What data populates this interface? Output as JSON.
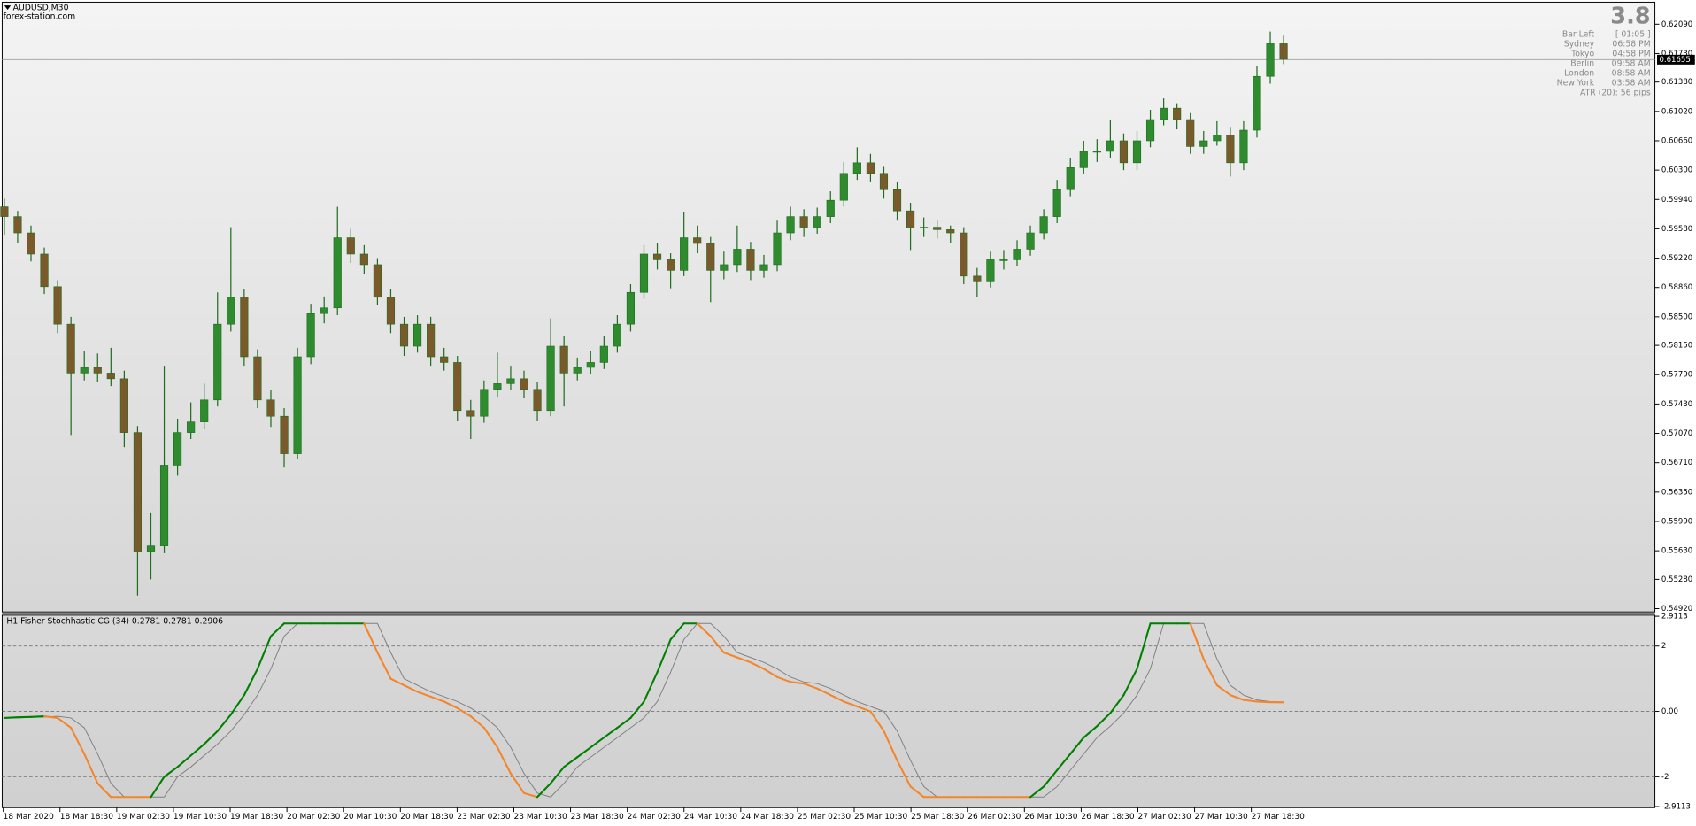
{
  "header": {
    "symbol": "AUDUSD,M30",
    "site": "forex-station.com"
  },
  "info": {
    "value": 3.8,
    "rows": [
      {
        "label": "Bar Left",
        "value": "[ 01:05 ]"
      },
      {
        "label": "Sydney",
        "value": "06:58 PM"
      },
      {
        "label": "Tokyo",
        "value": "04:58 PM"
      },
      {
        "label": "Berlin",
        "value": "09:58 AM"
      },
      {
        "label": "London",
        "value": "08:58 AM"
      },
      {
        "label": "New York",
        "value": "03:58 AM"
      }
    ],
    "atr": "ATR (20): 56 pips"
  },
  "chart_data": [
    {
      "type": "candlestick",
      "up_color": "#2e8b2e",
      "down_color": "#7a5a2a",
      "wick_color": "#1f6e1f",
      "open": [
        0.5985,
        0.5973,
        0.5953,
        0.5927,
        0.5887,
        0.5841,
        0.5781,
        0.5788,
        0.5781,
        0.5774,
        0.5708,
        0.5562,
        0.5569,
        0.5668,
        0.5708,
        0.5721,
        0.5748,
        0.5841,
        0.5874,
        0.5801,
        0.5748,
        0.5728,
        0.5682,
        0.5801,
        0.5854,
        0.5861,
        0.5947,
        0.5927,
        0.5914,
        0.5874,
        0.5841,
        0.5814,
        0.5841,
        0.5801,
        0.5794,
        0.5735,
        0.5728,
        0.5761,
        0.5768,
        0.5774,
        0.5761,
        0.5735,
        0.5814,
        0.5781,
        0.5788,
        0.5794,
        0.5814,
        0.5841,
        0.588,
        0.5927,
        0.592,
        0.5907,
        0.5947,
        0.594,
        0.5907,
        0.5914,
        0.5933,
        0.5907,
        0.5914,
        0.5953,
        0.5973,
        0.596,
        0.5973,
        0.5993,
        0.6026,
        0.6039,
        0.6026,
        0.6006,
        0.598,
        0.596,
        0.596,
        0.5957,
        0.5953,
        0.59,
        0.5894,
        0.592,
        0.592,
        0.5933,
        0.5953,
        0.5973,
        0.6006,
        0.6033,
        0.6053,
        0.6053,
        0.6066,
        0.6039,
        0.6066,
        0.6092,
        0.6106,
        0.6092,
        0.6059,
        0.6066,
        0.6073,
        0.6039,
        0.6079,
        0.6145,
        0.6185
      ],
      "high": [
        0.5995,
        0.598,
        0.5962,
        0.5935,
        0.5895,
        0.585,
        0.5808,
        0.5805,
        0.5812,
        0.5784,
        0.5716,
        0.561,
        0.579,
        0.5725,
        0.5745,
        0.5768,
        0.588,
        0.596,
        0.5884,
        0.581,
        0.576,
        0.5738,
        0.5812,
        0.5866,
        0.5875,
        0.5985,
        0.5958,
        0.5938,
        0.5922,
        0.5884,
        0.585,
        0.5852,
        0.585,
        0.5812,
        0.5802,
        0.5748,
        0.5772,
        0.5806,
        0.579,
        0.5784,
        0.577,
        0.5848,
        0.5826,
        0.58,
        0.5808,
        0.5826,
        0.5852,
        0.589,
        0.5938,
        0.594,
        0.5928,
        0.5978,
        0.5962,
        0.5948,
        0.593,
        0.5962,
        0.5942,
        0.5926,
        0.5968,
        0.5985,
        0.5982,
        0.5984,
        0.6004,
        0.604,
        0.6058,
        0.605,
        0.6034,
        0.6015,
        0.599,
        0.5972,
        0.5968,
        0.5962,
        0.596,
        0.591,
        0.593,
        0.5932,
        0.5944,
        0.5962,
        0.5982,
        0.6018,
        0.6045,
        0.6066,
        0.6068,
        0.6092,
        0.6075,
        0.6078,
        0.6104,
        0.6118,
        0.6112,
        0.61,
        0.6078,
        0.609,
        0.6082,
        0.609,
        0.6158,
        0.62,
        0.6195
      ],
      "low": [
        0.595,
        0.594,
        0.5918,
        0.5878,
        0.583,
        0.5705,
        0.5772,
        0.577,
        0.5765,
        0.569,
        0.5508,
        0.5528,
        0.556,
        0.5655,
        0.57,
        0.5712,
        0.574,
        0.5832,
        0.579,
        0.5738,
        0.5715,
        0.5665,
        0.5675,
        0.5792,
        0.5842,
        0.5852,
        0.5916,
        0.5902,
        0.5865,
        0.583,
        0.5802,
        0.5806,
        0.579,
        0.5784,
        0.5722,
        0.57,
        0.572,
        0.5752,
        0.576,
        0.575,
        0.5722,
        0.5728,
        0.574,
        0.5772,
        0.578,
        0.5786,
        0.5806,
        0.5832,
        0.5872,
        0.5908,
        0.5885,
        0.59,
        0.5928,
        0.5868,
        0.5896,
        0.5905,
        0.5895,
        0.5898,
        0.5906,
        0.5944,
        0.5948,
        0.5952,
        0.5965,
        0.5985,
        0.6018,
        0.6015,
        0.5995,
        0.5968,
        0.5932,
        0.5948,
        0.5946,
        0.594,
        0.589,
        0.5874,
        0.5886,
        0.5908,
        0.5912,
        0.5925,
        0.5945,
        0.5965,
        0.5998,
        0.6025,
        0.604,
        0.6045,
        0.603,
        0.603,
        0.6058,
        0.6085,
        0.608,
        0.605,
        0.605,
        0.606,
        0.6022,
        0.603,
        0.607,
        0.6136,
        0.616
      ],
      "close": [
        0.5973,
        0.5953,
        0.5927,
        0.5887,
        0.5841,
        0.5781,
        0.5788,
        0.5781,
        0.5774,
        0.5708,
        0.5562,
        0.5569,
        0.5668,
        0.5708,
        0.5721,
        0.5748,
        0.5841,
        0.5874,
        0.5801,
        0.5748,
        0.5728,
        0.5682,
        0.5801,
        0.5854,
        0.5861,
        0.5947,
        0.5927,
        0.5914,
        0.5874,
        0.5841,
        0.5814,
        0.5841,
        0.5801,
        0.5794,
        0.5735,
        0.5728,
        0.5761,
        0.5768,
        0.5774,
        0.5761,
        0.5735,
        0.5814,
        0.5781,
        0.5788,
        0.5794,
        0.5814,
        0.5841,
        0.588,
        0.5927,
        0.592,
        0.5907,
        0.5947,
        0.594,
        0.5907,
        0.5914,
        0.5933,
        0.5907,
        0.5914,
        0.5953,
        0.5973,
        0.596,
        0.5973,
        0.5993,
        0.6026,
        0.6039,
        0.6026,
        0.6006,
        0.598,
        0.596,
        0.596,
        0.5957,
        0.5953,
        0.59,
        0.5894,
        0.592,
        0.592,
        0.5933,
        0.5953,
        0.5973,
        0.6006,
        0.6033,
        0.6053,
        0.6053,
        0.6066,
        0.6039,
        0.6066,
        0.6092,
        0.6106,
        0.6092,
        0.6059,
        0.6066,
        0.6073,
        0.6039,
        0.6079,
        0.6145,
        0.6185,
        0.6166
      ],
      "current_price": 0.61655,
      "ylim": [
        0.5488,
        0.6236
      ],
      "yticks": [
        {
          "value": 0.6209,
          "label": "0.62090"
        },
        {
          "value": 0.6173,
          "label": "0.61730"
        },
        {
          "value": 0.6138,
          "label": "0.61380"
        },
        {
          "value": 0.6102,
          "label": "0.61020"
        },
        {
          "value": 0.6066,
          "label": "0.60660"
        },
        {
          "value": 0.603,
          "label": "0.60300"
        },
        {
          "value": 0.5994,
          "label": "0.59940"
        },
        {
          "value": 0.5958,
          "label": "0.59580"
        },
        {
          "value": 0.5922,
          "label": "0.59220"
        },
        {
          "value": 0.5886,
          "label": "0.58860"
        },
        {
          "value": 0.585,
          "label": "0.58500"
        },
        {
          "value": 0.5815,
          "label": "0.58150"
        },
        {
          "value": 0.5779,
          "label": "0.57790"
        },
        {
          "value": 0.5743,
          "label": "0.57430"
        },
        {
          "value": 0.5707,
          "label": "0.57070"
        },
        {
          "value": 0.5671,
          "label": "0.56710"
        },
        {
          "value": 0.5635,
          "label": "0.56350"
        },
        {
          "value": 0.5599,
          "label": "0.55990"
        },
        {
          "value": 0.5563,
          "label": "0.55630"
        },
        {
          "value": 0.5528,
          "label": "0.55280"
        },
        {
          "value": 0.5492,
          "label": "0.54920"
        }
      ],
      "x_labels": [
        "18 Mar 2020",
        "18 Mar 18:30",
        "19 Mar 02:30",
        "19 Mar 10:30",
        "19 Mar 18:30",
        "20 Mar 02:30",
        "20 Mar 10:30",
        "20 Mar 18:30",
        "23 Mar 02:30",
        "23 Mar 10:30",
        "23 Mar 18:30",
        "24 Mar 02:30",
        "24 Mar 10:30",
        "24 Mar 18:30",
        "25 Mar 02:30",
        "25 Mar 10:30",
        "25 Mar 18:30",
        "26 Mar 02:30",
        "26 Mar 10:30",
        "26 Mar 18:30",
        "27 Mar 02:30",
        "27 Mar 10:30",
        "27 Mar 18:30"
      ]
    },
    {
      "type": "line",
      "title": "H1 Fisher Stochhastic CG (34) 0.2781 0.2781 0.2906",
      "series": [
        {
          "color": "#008000",
          "down_color": "#f5852a",
          "values": [
            -0.2,
            -0.18,
            -0.17,
            -0.15,
            -0.2,
            -0.5,
            -1.3,
            -2.2,
            -2.62,
            -2.62,
            -2.62,
            -2.62,
            -2.0,
            -1.7,
            -1.35,
            -1.0,
            -0.6,
            -0.1,
            0.5,
            1.3,
            2.3,
            2.69,
            2.69,
            2.69,
            2.69,
            2.69,
            2.69,
            2.69,
            1.8,
            1.0,
            0.8,
            0.6,
            0.45,
            0.3,
            0.1,
            -0.15,
            -0.5,
            -1.1,
            -1.9,
            -2.5,
            -2.62,
            -2.2,
            -1.7,
            -1.4,
            -1.1,
            -0.8,
            -0.5,
            -0.2,
            0.3,
            1.2,
            2.2,
            2.69,
            2.69,
            2.3,
            1.8,
            1.65,
            1.5,
            1.3,
            1.05,
            0.9,
            0.85,
            0.7,
            0.5,
            0.3,
            0.15,
            0.0,
            -0.6,
            -1.5,
            -2.3,
            -2.62,
            -2.62,
            -2.62,
            -2.62,
            -2.62,
            -2.62,
            -2.62,
            -2.62,
            -2.62,
            -2.3,
            -1.8,
            -1.3,
            -0.8,
            -0.45,
            -0.05,
            0.5,
            1.3,
            2.69,
            2.69,
            2.69,
            2.69,
            1.6,
            0.8,
            0.5,
            0.35,
            0.3,
            0.28,
            0.2781
          ]
        },
        {
          "color": "#808080",
          "values": [
            -0.2,
            -0.2,
            -0.18,
            -0.17,
            -0.15,
            -0.2,
            -0.5,
            -1.3,
            -2.2,
            -2.62,
            -2.62,
            -2.62,
            -2.62,
            -2.0,
            -1.7,
            -1.35,
            -1.0,
            -0.6,
            -0.1,
            0.5,
            1.3,
            2.3,
            2.69,
            2.69,
            2.69,
            2.69,
            2.69,
            2.69,
            2.69,
            1.8,
            1.0,
            0.8,
            0.6,
            0.45,
            0.3,
            0.1,
            -0.15,
            -0.5,
            -1.1,
            -1.9,
            -2.5,
            -2.62,
            -2.2,
            -1.7,
            -1.4,
            -1.1,
            -0.8,
            -0.5,
            -0.2,
            0.3,
            1.2,
            2.2,
            2.69,
            2.69,
            2.3,
            1.8,
            1.65,
            1.5,
            1.3,
            1.05,
            0.9,
            0.85,
            0.7,
            0.5,
            0.3,
            0.15,
            0.0,
            -0.6,
            -1.5,
            -2.3,
            -2.62,
            -2.62,
            -2.62,
            -2.62,
            -2.62,
            -2.62,
            -2.62,
            -2.62,
            -2.62,
            -2.3,
            -1.8,
            -1.3,
            -0.8,
            -0.45,
            -0.05,
            0.5,
            1.3,
            2.69,
            2.69,
            2.69,
            2.69,
            1.6,
            0.8,
            0.5,
            0.35,
            0.3,
            0.2906
          ]
        }
      ],
      "ylim": [
        -2.9113,
        2.9113
      ],
      "yticks": [
        2.9113,
        2,
        {
          "value": 0,
          "label": "0.00"
        },
        -2,
        -2.9113
      ],
      "grid": true
    }
  ]
}
